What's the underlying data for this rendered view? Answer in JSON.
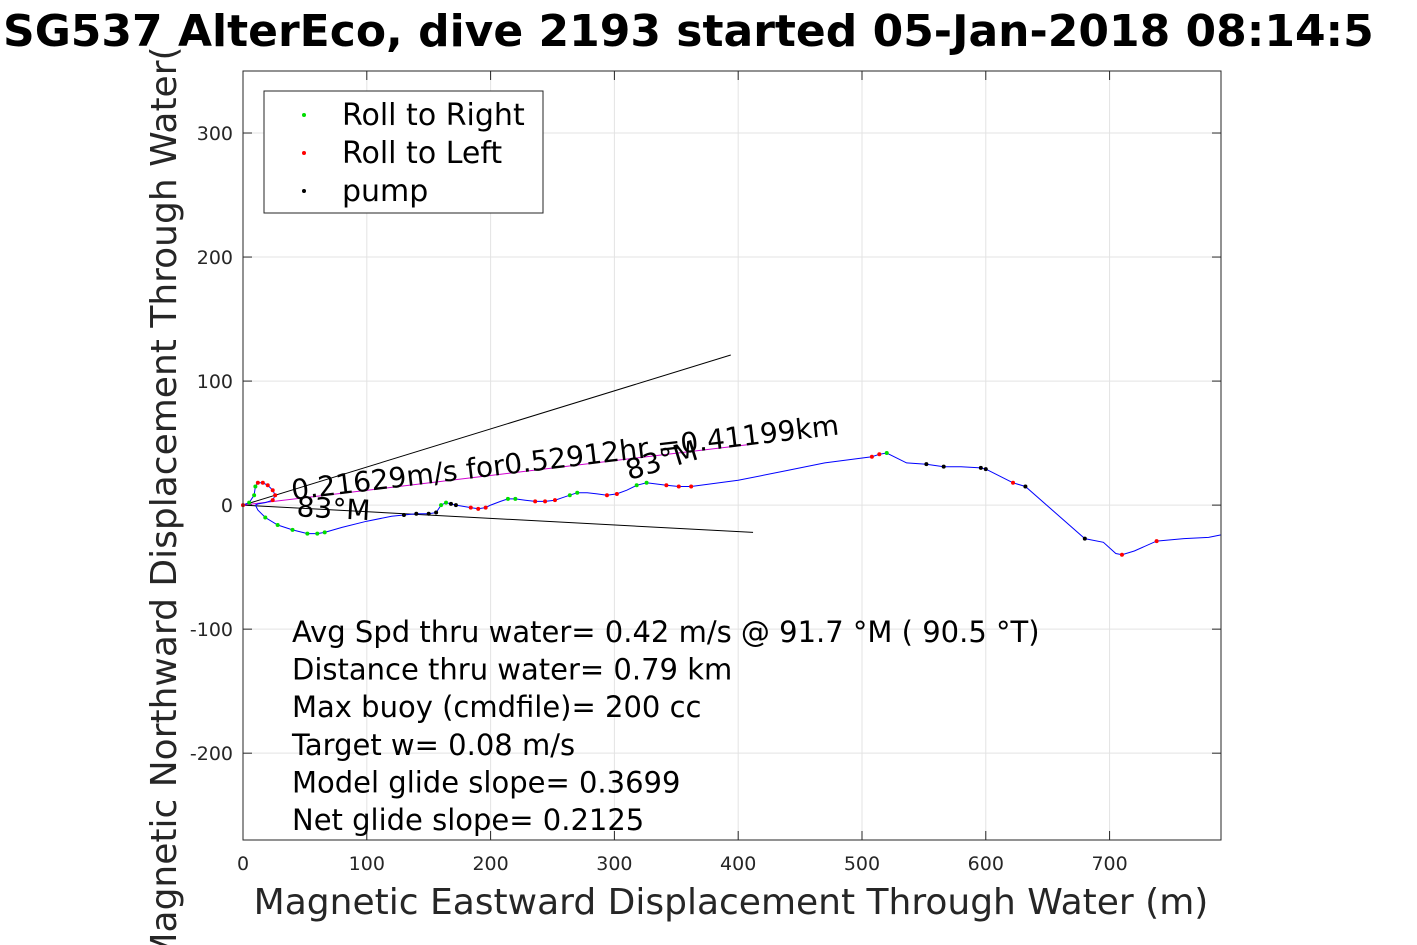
{
  "chart_data": {
    "type": "line",
    "title": "SG537 AlterEco, dive 2193 started 05-Jan-2018 08:14:5",
    "xlabel": "Magnetic Eastward Displacement Through Water (m)",
    "ylabel": "Magnetic Northward Displacement Through Water(",
    "xlim": [
      0,
      790
    ],
    "ylim": [
      -270,
      350
    ],
    "xticks": [
      0,
      100,
      200,
      300,
      400,
      500,
      600,
      700
    ],
    "yticks": [
      -200,
      -100,
      0,
      100,
      200,
      300
    ],
    "xtick_labels": [
      "0",
      "100",
      "200",
      "300",
      "400",
      "500",
      "600",
      "700"
    ],
    "ytick_labels": [
      "-200",
      "-100",
      "0",
      "100",
      "200",
      "300"
    ],
    "grid": true,
    "legend_position": "top-left",
    "legend": [
      {
        "label": "Roll to Right",
        "color": "#00dd00"
      },
      {
        "label": "Roll to Left",
        "color": "#ff0000"
      },
      {
        "label": "pump",
        "color": "#000000"
      }
    ],
    "track": {
      "color": "#0000ff",
      "x": [
        0,
        5,
        9,
        10,
        12,
        16,
        20,
        24,
        26,
        24,
        18,
        12,
        10,
        12,
        18,
        28,
        40,
        52,
        60,
        66,
        80,
        100,
        120,
        130,
        140,
        150,
        156,
        160,
        164,
        168,
        172,
        178,
        184,
        190,
        196,
        200,
        208,
        214,
        220,
        228,
        236,
        244,
        252,
        258,
        264,
        270,
        278,
        286,
        294,
        302,
        310,
        318,
        326,
        334,
        342,
        352,
        362,
        400,
        440,
        470,
        508,
        514,
        520,
        536,
        552,
        566,
        580,
        596,
        600,
        622,
        632,
        680,
        695,
        705,
        710,
        720,
        738,
        760,
        780,
        790
      ],
      "y": [
        0,
        2,
        8,
        15,
        18,
        18,
        16,
        12,
        8,
        4,
        2,
        1,
        0,
        -4,
        -10,
        -16,
        -20,
        -23,
        -23,
        -22,
        -18,
        -13,
        -9,
        -8,
        -7,
        -7,
        -6,
        0,
        2,
        1,
        0,
        -1,
        -2,
        -3,
        -2,
        0,
        3,
        5,
        5,
        4,
        3,
        3,
        4,
        6,
        8,
        10,
        10,
        9,
        8,
        9,
        12,
        16,
        18,
        17,
        16,
        15,
        15,
        20,
        28,
        34,
        39,
        41,
        42,
        34,
        33,
        31,
        31,
        30,
        29,
        18,
        15,
        -27,
        -30,
        -39,
        -40,
        -37,
        -29,
        -27,
        -26,
        -24
      ]
    },
    "roll_right_x": [
      5,
      9,
      10,
      18,
      28,
      40,
      52,
      60,
      66,
      160,
      164,
      214,
      220,
      264,
      270,
      318,
      326,
      520
    ],
    "roll_right_y": [
      2,
      8,
      15,
      -10,
      -16,
      -20,
      -23,
      -23,
      -22,
      0,
      2,
      5,
      5,
      8,
      10,
      16,
      18,
      42
    ],
    "roll_left_x": [
      0,
      12,
      16,
      20,
      24,
      26,
      24,
      184,
      190,
      196,
      236,
      244,
      252,
      294,
      302,
      342,
      352,
      362,
      508,
      514,
      622,
      710,
      738
    ],
    "roll_left_y": [
      0,
      18,
      18,
      16,
      12,
      8,
      4,
      -2,
      -3,
      -2,
      3,
      3,
      4,
      8,
      9,
      16,
      15,
      15,
      39,
      41,
      18,
      -40,
      -29
    ],
    "pump_x": [
      130,
      140,
      150,
      156,
      168,
      172,
      552,
      566,
      596,
      600,
      632,
      680
    ],
    "pump_y": [
      -8,
      -7,
      -7,
      -6,
      1,
      0,
      33,
      31,
      30,
      29,
      15,
      -27
    ],
    "current_segment": {
      "x": [
        0,
        410
      ],
      "y": [
        0,
        49
      ],
      "color": "#d000d0",
      "label": "0.21629m/s for0.52912hr =0.41199km"
    },
    "heading_lines": [
      {
        "x": [
          0,
          394
        ],
        "y": [
          0,
          121
        ],
        "color": "#000000",
        "label": "83°M"
      },
      {
        "x": [
          0,
          412
        ],
        "y": [
          0,
          -22
        ],
        "color": "#000000",
        "label": "83°M"
      }
    ],
    "stats": [
      "Avg Spd thru water=  0.42 m/s @  91.7 °M ( 90.5 °T)",
      "Distance thru water=  0.79 km",
      "Max buoy (cmdfile)= 200 cc",
      "Target w= 0.08 m/s",
      "Model glide slope= 0.3699",
      "Net glide slope= 0.2125"
    ]
  }
}
